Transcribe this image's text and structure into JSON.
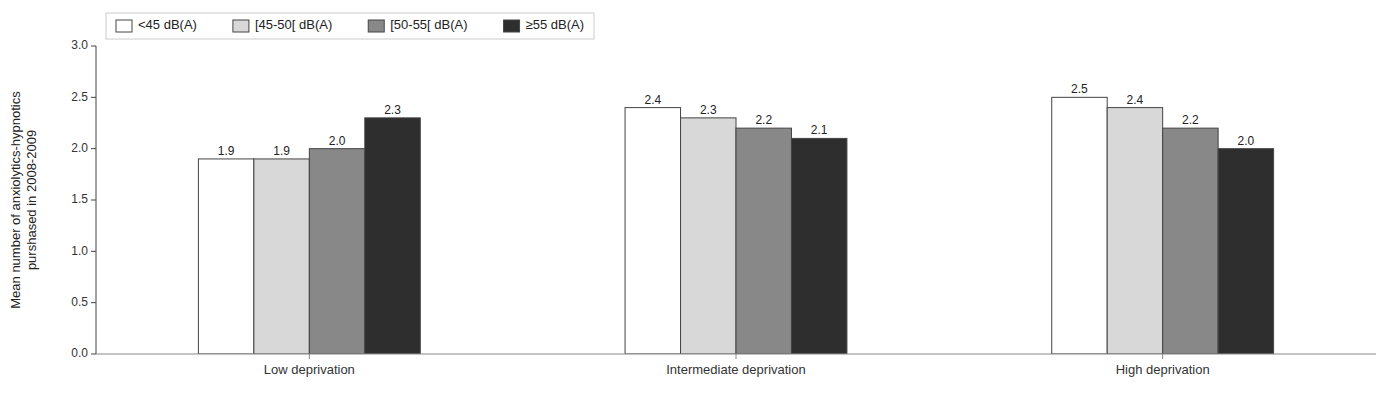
{
  "chart_data": {
    "type": "bar",
    "categories": [
      "Low deprivation",
      "Intermediate deprivation",
      "High deprivation"
    ],
    "series": [
      {
        "name": "<45 dB(A)",
        "color": "#ffffff",
        "values": [
          1.9,
          2.4,
          2.5
        ],
        "value_labels": [
          "1.9",
          "2.4",
          "2.5"
        ]
      },
      {
        "name": "[45-50[ dB(A)",
        "color": "#d8d8d8",
        "values": [
          1.9,
          2.3,
          2.4
        ],
        "value_labels": [
          "1.9",
          "2.3",
          "2.4"
        ]
      },
      {
        "name": "[50-55[ dB(A)",
        "color": "#888888",
        "values": [
          2.0,
          2.2,
          2.2
        ],
        "value_labels": [
          "2.0",
          "2.2",
          "2.2"
        ]
      },
      {
        "name": "≥55 dB(A)",
        "color": "#2e2e2e",
        "values": [
          2.3,
          2.1,
          2.0
        ],
        "value_labels": [
          "2.3",
          "2.1",
          "2.0"
        ]
      }
    ],
    "ylabel": "Mean number of anxiolytics-hypnotics\npurshased in 2008-2009",
    "ylim": [
      0,
      3.0
    ],
    "yticks": [
      {
        "value": 0.0,
        "label": "0.0"
      },
      0.5,
      {
        "value": 1.0,
        "label": "1.0"
      },
      1.5,
      {
        "value": 2.0,
        "label": "2.0"
      },
      2.5,
      {
        "value": 3.0,
        "label": "3.0"
      }
    ],
    "data_labels": true,
    "grid": false,
    "legend": "upper left"
  }
}
